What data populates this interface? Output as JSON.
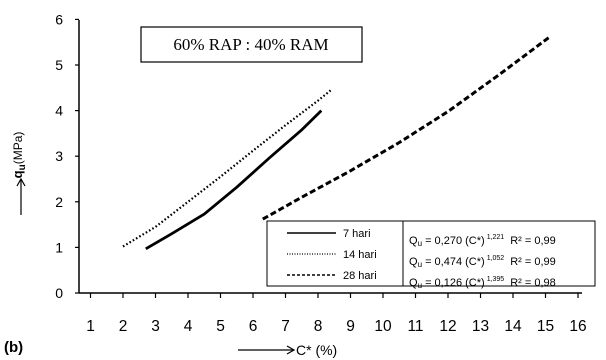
{
  "chart_data": {
    "type": "line",
    "title": "60% RAP : 40% RAM",
    "panel_label": "(b)",
    "xlabel": "C* (%)",
    "ylabel": "q",
    "ylabel_sub": "u",
    "ylabel_unit": "(MPa)",
    "xlim": [
      1,
      16
    ],
    "ylim": [
      0,
      6
    ],
    "x_ticks": [
      "1",
      "2",
      "3",
      "4",
      "5",
      "6",
      "7",
      "8",
      "9",
      "10",
      "11",
      "12",
      "13",
      "14",
      "15",
      "16"
    ],
    "y_ticks": [
      "0",
      "1",
      "2",
      "3",
      "4",
      "5",
      "6"
    ],
    "grid": false,
    "legend_position": "bottom-right",
    "series": [
      {
        "name": "7 hari",
        "style": "solid",
        "equation": {
          "prefix": "Q",
          "sub": "u",
          "mid": " = 0,270 (C*)",
          "exp": "1,221",
          "r2": "R² = 0,99"
        },
        "points": [
          [
            2.7,
            0.97
          ],
          [
            3.5,
            1.3
          ],
          [
            4.5,
            1.73
          ],
          [
            5.5,
            2.32
          ],
          [
            6.5,
            2.96
          ],
          [
            7.5,
            3.58
          ],
          [
            8.1,
            4.0
          ]
        ]
      },
      {
        "name": "14 hari",
        "style": "dotted",
        "equation": {
          "prefix": "Q",
          "sub": "u",
          "mid": " = 0,474 (C*)",
          "exp": "1,052",
          "r2": "R² = 0,99"
        },
        "points": [
          [
            2.0,
            1.02
          ],
          [
            3.0,
            1.45
          ],
          [
            4.0,
            2.0
          ],
          [
            5.0,
            2.55
          ],
          [
            6.0,
            3.12
          ],
          [
            7.0,
            3.68
          ],
          [
            8.0,
            4.22
          ],
          [
            8.4,
            4.45
          ]
        ]
      },
      {
        "name": "28 hari",
        "style": "dashed",
        "equation": {
          "prefix": "Q",
          "sub": "u",
          "mid": " = 0,126 (C*)",
          "exp": "1,395",
          "r2": "R² = 0,98"
        },
        "points": [
          [
            6.3,
            1.62
          ],
          [
            7.5,
            2.1
          ],
          [
            9.0,
            2.68
          ],
          [
            10.5,
            3.3
          ],
          [
            12.0,
            3.98
          ],
          [
            13.5,
            4.75
          ],
          [
            15.1,
            5.6
          ]
        ]
      }
    ]
  }
}
